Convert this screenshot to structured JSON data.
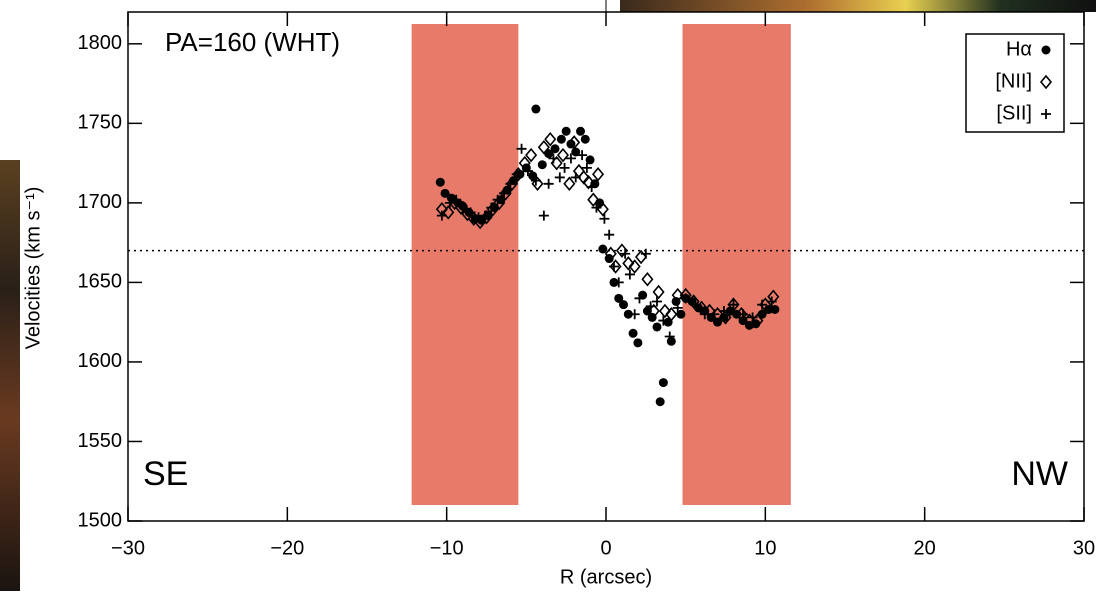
{
  "chart_data": {
    "type": "scatter",
    "title": "PA=160   (WHT)",
    "x_label": "R (arcsec)",
    "y_label": "Velocities (km s⁻¹)",
    "corner_left": "SE",
    "corner_right": "NW",
    "xlim": [
      -30,
      30
    ],
    "ylim": [
      1500,
      1820
    ],
    "xticks": [
      {
        "value": -30,
        "label": "−30"
      },
      {
        "value": -20,
        "label": "−20"
      },
      {
        "value": -10,
        "label": "−10"
      },
      0,
      10,
      20,
      30
    ],
    "yticks": [
      1500,
      1550,
      1600,
      1650,
      1700,
      1750,
      1800
    ],
    "reference_line": 1670,
    "shaded_x_ranges": [
      [
        -12.2,
        -5.5
      ],
      [
        4.8,
        11.6
      ]
    ],
    "shade_color": "#e87a6a",
    "legend": "upper right",
    "series": [
      {
        "name": "Hα",
        "marker": "circle",
        "color": "#000000",
        "x": [
          -10.4,
          -10.1,
          -9.7,
          -9.3,
          -9.0,
          -8.6,
          -8.2,
          -7.8,
          -7.4,
          -7.0,
          -6.6,
          -6.2,
          -5.8,
          -5.4,
          -5.0,
          -4.6,
          -4.4,
          -4.0,
          -3.6,
          -3.2,
          -2.8,
          -2.5,
          -2.2,
          -1.9,
          -1.6,
          -1.3,
          -1.0,
          -0.7,
          -0.4,
          -0.2,
          0.2,
          0.5,
          0.8,
          1.1,
          1.4,
          1.7,
          2.0,
          2.3,
          2.6,
          2.9,
          3.2,
          3.4,
          3.6,
          3.9,
          4.1,
          4.4,
          4.7,
          5.0,
          5.4,
          5.8,
          6.2,
          6.6,
          7.0,
          7.4,
          7.8,
          8.2,
          8.6,
          9.0,
          9.4,
          9.8,
          10.2,
          10.6
        ],
        "values": [
          1713,
          1706,
          1703,
          1700,
          1698,
          1694,
          1690,
          1689,
          1692,
          1697,
          1702,
          1708,
          1714,
          1718,
          1722,
          1717,
          1759,
          1724,
          1731,
          1734,
          1740,
          1745,
          1737,
          1732,
          1745,
          1740,
          1727,
          1712,
          1700,
          1671,
          1665,
          1650,
          1640,
          1636,
          1630,
          1618,
          1612,
          1642,
          1632,
          1628,
          1622,
          1575,
          1587,
          1625,
          1613,
          1638,
          1630,
          1640,
          1638,
          1634,
          1632,
          1628,
          1625,
          1628,
          1632,
          1630,
          1626,
          1623,
          1624,
          1630,
          1633,
          1633
        ]
      },
      {
        "name": "[NII]",
        "marker": "diamond",
        "color": "#000000",
        "x": [
          -10.3,
          -9.9,
          -9.5,
          -9.1,
          -8.7,
          -8.3,
          -7.9,
          -7.5,
          -7.1,
          -6.7,
          -6.3,
          -5.9,
          -5.5,
          -5.1,
          -4.7,
          -4.3,
          -3.9,
          -3.5,
          -3.1,
          -2.7,
          -2.3,
          -2.0,
          -1.7,
          -1.4,
          -1.1,
          -0.8,
          -0.5,
          -0.2,
          0.3,
          0.6,
          1.0,
          1.4,
          1.8,
          2.2,
          2.6,
          3.0,
          3.3,
          3.7,
          4.1,
          4.5,
          5.0,
          5.5,
          6.0,
          6.5,
          7.0,
          7.5,
          8.0,
          8.5,
          9.0,
          9.5,
          10.0,
          10.5
        ],
        "values": [
          1696,
          1694,
          1700,
          1697,
          1693,
          1690,
          1688,
          1691,
          1696,
          1700,
          1706,
          1712,
          1718,
          1725,
          1730,
          1712,
          1735,
          1740,
          1725,
          1730,
          1712,
          1738,
          1720,
          1716,
          1713,
          1702,
          1718,
          1696,
          1668,
          1660,
          1670,
          1662,
          1660,
          1666,
          1652,
          1632,
          1644,
          1632,
          1630,
          1642,
          1642,
          1638,
          1634,
          1632,
          1630,
          1628,
          1636,
          1630,
          1626,
          1626,
          1636,
          1641
        ]
      },
      {
        "name": "[SII]",
        "marker": "plus",
        "color": "#000000",
        "x": [
          -10.3,
          -9.8,
          -9.4,
          -9.0,
          -8.5,
          -8.0,
          -7.6,
          -7.2,
          -6.8,
          -6.4,
          -6.0,
          -5.6,
          -5.3,
          -4.9,
          -4.4,
          -3.9,
          -3.6,
          -3.3,
          -2.9,
          -2.6,
          -2.2,
          -1.9,
          -1.5,
          -1.2,
          -0.9,
          -0.6,
          -0.1,
          0.2,
          0.5,
          0.8,
          1.2,
          1.5,
          1.8,
          2.1,
          2.5,
          2.8,
          3.2,
          3.6,
          4.0,
          4.5,
          5.0,
          5.6,
          6.2,
          6.8,
          7.4,
          8.0,
          8.6,
          9.2,
          9.8,
          10.4
        ],
        "values": [
          1692,
          1700,
          1702,
          1698,
          1694,
          1691,
          1692,
          1697,
          1702,
          1706,
          1712,
          1718,
          1734,
          1720,
          1714,
          1692,
          1712,
          1728,
          1716,
          1722,
          1728,
          1716,
          1730,
          1722,
          1710,
          1697,
          1690,
          1680,
          1660,
          1650,
          1668,
          1655,
          1630,
          1640,
          1668,
          1635,
          1638,
          1626,
          1616,
          1634,
          1640,
          1636,
          1630,
          1630,
          1632,
          1636,
          1630,
          1628,
          1636,
          1638
        ]
      }
    ]
  }
}
